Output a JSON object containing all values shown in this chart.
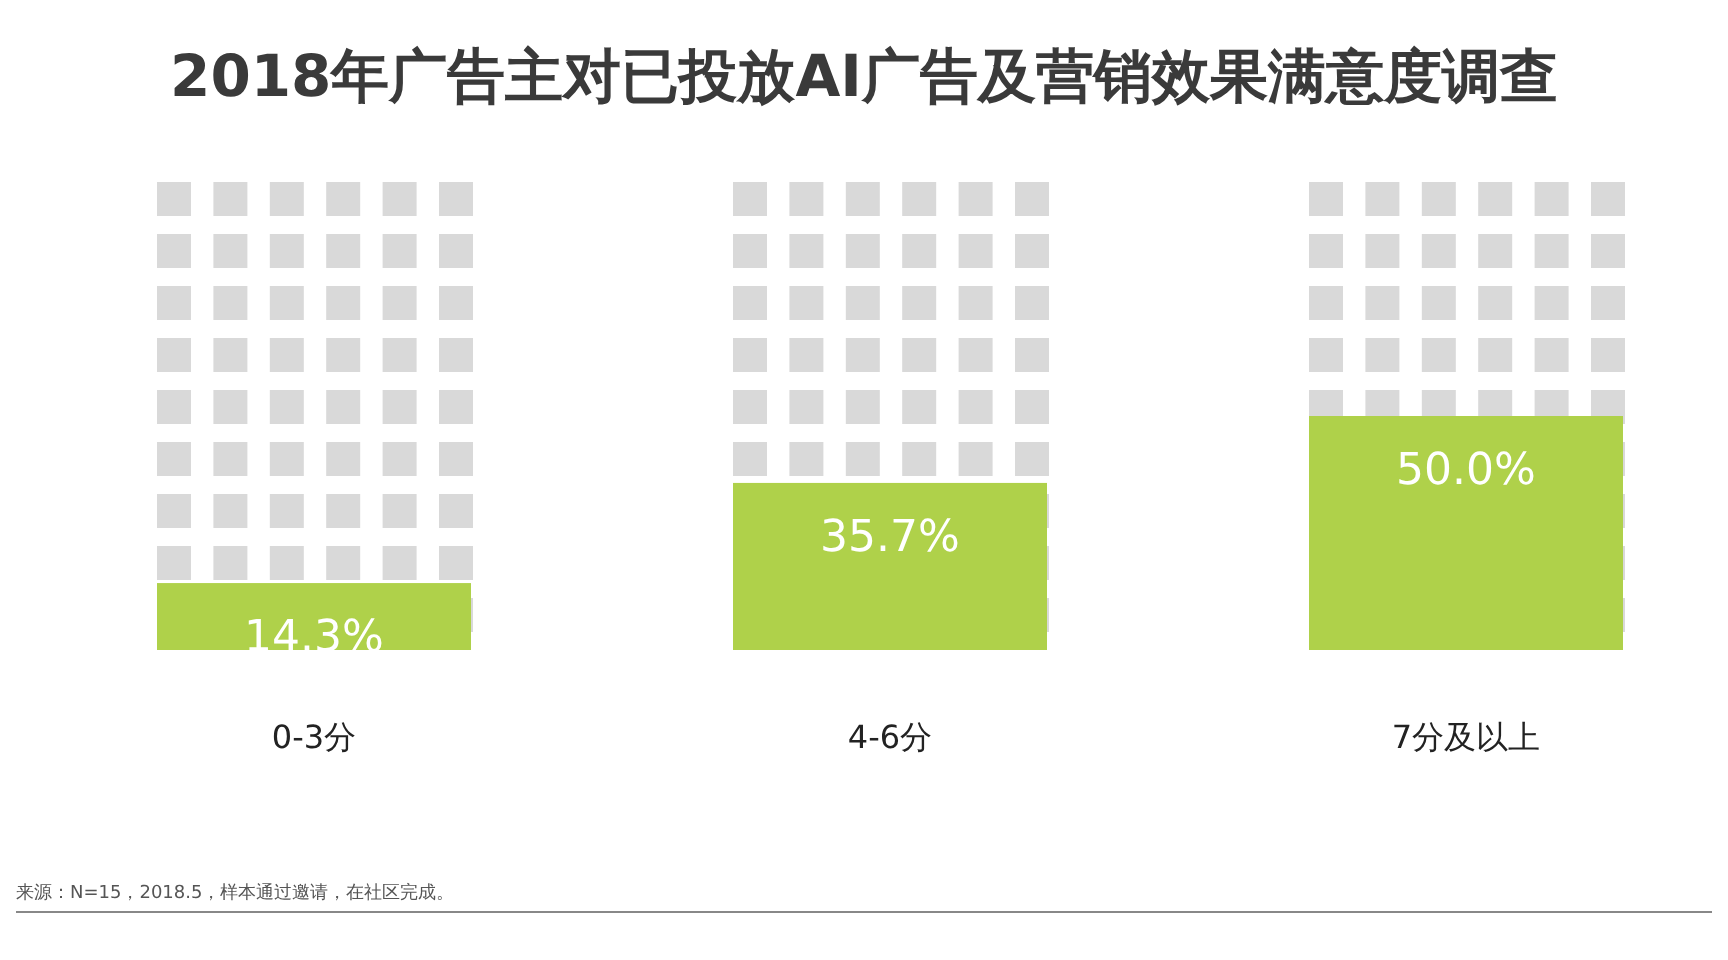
{
  "chart_data": {
    "type": "bar",
    "title": "2018年广告主对已投放AI广告及营销效果满意度调查",
    "categories": [
      "0-3分",
      "4-6分",
      "7分及以上"
    ],
    "values": [
      14.3,
      35.7,
      50.0
    ],
    "color": "#afd14a",
    "ylim": [
      0,
      100
    ],
    "value_labels": [
      "14.3%",
      "35.7%",
      "50.0%"
    ],
    "tick_labels": "x",
    "annotations": [
      "来源：N=15，2018.5，样本通过邀请，在社区完成。"
    ]
  }
}
